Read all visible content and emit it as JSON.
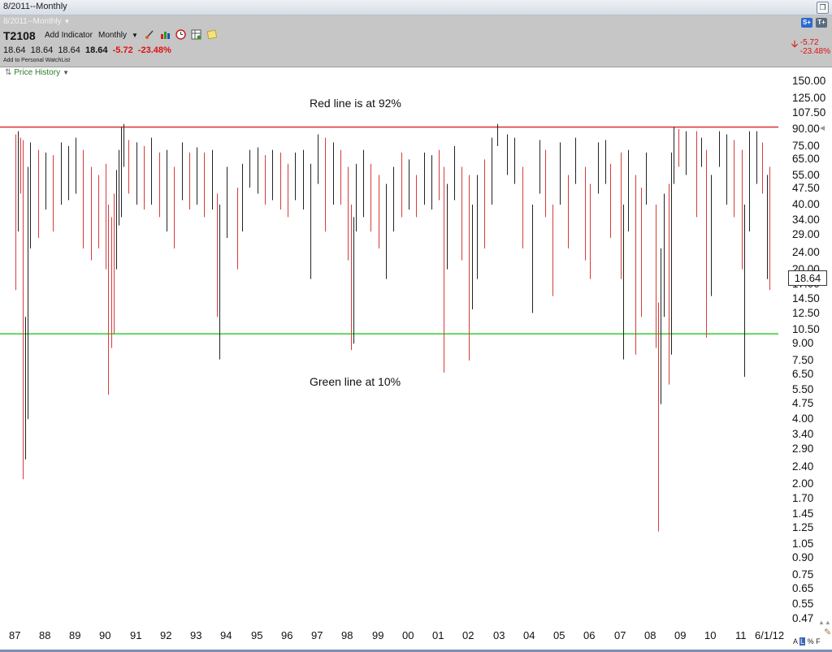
{
  "window": {
    "title": "8/2011--Monthly"
  },
  "toolbar": {
    "period_title": "8/2011--Monthly",
    "symbol": "T2108",
    "add_indicator": "Add Indicator",
    "period": "Monthly",
    "quote": {
      "open": "18.64",
      "high": "18.64",
      "low": "18.64",
      "last": "18.64",
      "change": "-5.72",
      "change_pct": "-23.48%"
    },
    "watchlist": "Add to Personal WatchList",
    "right_change": "-5.72",
    "right_change_pct": "-23.48%",
    "icons": [
      "drawing-tool-icon",
      "bar-chart-icon",
      "clock-icon",
      "table-icon",
      "note-icon"
    ]
  },
  "price_history": {
    "label": "Price History"
  },
  "annotations": {
    "top": "Red line is at 92%",
    "bottom": "Green line at 10%"
  },
  "last_value_label": "18.64",
  "bottom_toggles": {
    "a": "A",
    "l": "L",
    "pct": "%",
    "f": "F"
  },
  "colors": {
    "up": "#222222",
    "down": "#d83a3a",
    "red_line": "#d63030",
    "green_line": "#33cc33"
  },
  "chart_data": {
    "type": "bar",
    "style": "OHLC monthly price bars, red for down months, black for up months",
    "y_scale": "log",
    "y_ticks": [
      "150.00",
      "125.00",
      "107.50",
      "90.00",
      "75.00",
      "65.00",
      "55.00",
      "47.50",
      "40.00",
      "34.00",
      "29.00",
      "24.00",
      "20.00",
      "17.00",
      "14.50",
      "12.50",
      "10.50",
      "9.00",
      "7.50",
      "6.50",
      "5.50",
      "4.75",
      "4.00",
      "3.40",
      "2.90",
      "2.40",
      "2.00",
      "1.70",
      "1.45",
      "1.25",
      "1.05",
      "0.90",
      "0.75",
      "0.65",
      "0.55",
      "0.47"
    ],
    "x_ticks": [
      "87",
      "88",
      "89",
      "90",
      "91",
      "92",
      "93",
      "94",
      "95",
      "96",
      "97",
      "98",
      "99",
      "00",
      "01",
      "02",
      "03",
      "04",
      "05",
      "06",
      "07",
      "08",
      "09",
      "10",
      "11",
      "6/1/12"
    ],
    "ylim": [
      0.45,
      175
    ],
    "reference_lines": [
      {
        "value": 92,
        "color": "red"
      },
      {
        "value": 10,
        "color": "green"
      }
    ],
    "last_value": 18.64,
    "series": [
      {
        "values": [
          {
            "d": "1987-07",
            "h": 85,
            "l": 16,
            "up": false
          },
          {
            "d": "1987-08",
            "h": 88,
            "l": 30,
            "up": true
          },
          {
            "d": "1987-09",
            "h": 82,
            "l": 45,
            "up": false
          },
          {
            "d": "1987-10",
            "h": 80,
            "l": 2.1,
            "up": false
          },
          {
            "d": "1987-11",
            "h": 12,
            "l": 2.6,
            "up": true
          },
          {
            "d": "1987-12",
            "h": 60,
            "l": 4,
            "up": true
          },
          {
            "d": "1988-01",
            "h": 78,
            "l": 25,
            "up": true
          },
          {
            "d": "1988-04",
            "h": 72,
            "l": 28,
            "up": false
          },
          {
            "d": "1988-07",
            "h": 70,
            "l": 38,
            "up": true
          },
          {
            "d": "1988-10",
            "h": 68,
            "l": 30,
            "up": false
          },
          {
            "d": "1989-01",
            "h": 78,
            "l": 40,
            "up": true
          },
          {
            "d": "1989-04",
            "h": 75,
            "l": 42,
            "up": true
          },
          {
            "d": "1989-07",
            "h": 82,
            "l": 45,
            "up": true
          },
          {
            "d": "1989-10",
            "h": 72,
            "l": 25,
            "up": false
          },
          {
            "d": "1990-01",
            "h": 60,
            "l": 22,
            "up": false
          },
          {
            "d": "1990-04",
            "h": 55,
            "l": 25,
            "up": false
          },
          {
            "d": "1990-07",
            "h": 62,
            "l": 20,
            "up": false
          },
          {
            "d": "1990-08",
            "h": 40,
            "l": 5.2,
            "up": false
          },
          {
            "d": "1990-09",
            "h": 35,
            "l": 8.6,
            "up": false
          },
          {
            "d": "1990-10",
            "h": 45,
            "l": 10,
            "up": false
          },
          {
            "d": "1990-11",
            "h": 58,
            "l": 20,
            "up": true
          },
          {
            "d": "1990-12",
            "h": 72,
            "l": 32,
            "up": true
          },
          {
            "d": "1991-01",
            "h": 92,
            "l": 35,
            "up": true
          },
          {
            "d": "1991-02",
            "h": 95,
            "l": 60,
            "up": true
          },
          {
            "d": "1991-04",
            "h": 80,
            "l": 45,
            "up": false
          },
          {
            "d": "1991-07",
            "h": 78,
            "l": 40,
            "up": true
          },
          {
            "d": "1991-10",
            "h": 75,
            "l": 38,
            "up": false
          },
          {
            "d": "1992-01",
            "h": 82,
            "l": 40,
            "up": true
          },
          {
            "d": "1992-04",
            "h": 70,
            "l": 35,
            "up": false
          },
          {
            "d": "1992-07",
            "h": 72,
            "l": 30,
            "up": true
          },
          {
            "d": "1992-10",
            "h": 60,
            "l": 25,
            "up": false
          },
          {
            "d": "1993-01",
            "h": 78,
            "l": 42,
            "up": true
          },
          {
            "d": "1993-04",
            "h": 70,
            "l": 38,
            "up": false
          },
          {
            "d": "1993-07",
            "h": 74,
            "l": 40,
            "up": true
          },
          {
            "d": "1993-10",
            "h": 70,
            "l": 35,
            "up": false
          },
          {
            "d": "1994-01",
            "h": 72,
            "l": 38,
            "up": true
          },
          {
            "d": "1994-03",
            "h": 45,
            "l": 12,
            "up": false
          },
          {
            "d": "1994-04",
            "h": 40,
            "l": 7.6,
            "up": true
          },
          {
            "d": "1994-07",
            "h": 60,
            "l": 28,
            "up": true
          },
          {
            "d": "1994-11",
            "h": 48,
            "l": 20,
            "up": false
          },
          {
            "d": "1995-01",
            "h": 62,
            "l": 30,
            "up": true
          },
          {
            "d": "1995-04",
            "h": 72,
            "l": 48,
            "up": true
          },
          {
            "d": "1995-07",
            "h": 74,
            "l": 45,
            "up": true
          },
          {
            "d": "1995-10",
            "h": 68,
            "l": 40,
            "up": false
          },
          {
            "d": "1996-01",
            "h": 72,
            "l": 42,
            "up": true
          },
          {
            "d": "1996-04",
            "h": 70,
            "l": 38,
            "up": false
          },
          {
            "d": "1996-07",
            "h": 62,
            "l": 35,
            "up": false
          },
          {
            "d": "1996-10",
            "h": 70,
            "l": 42,
            "up": true
          },
          {
            "d": "1997-01",
            "h": 72,
            "l": 38,
            "up": true
          },
          {
            "d": "1997-04",
            "h": 62,
            "l": 18,
            "up": true
          },
          {
            "d": "1997-07",
            "h": 85,
            "l": 50,
            "up": true
          },
          {
            "d": "1997-10",
            "h": 82,
            "l": 30,
            "up": false
          },
          {
            "d": "1998-01",
            "h": 78,
            "l": 40,
            "up": true
          },
          {
            "d": "1998-04",
            "h": 72,
            "l": 40,
            "up": false
          },
          {
            "d": "1998-07",
            "h": 60,
            "l": 22,
            "up": false
          },
          {
            "d": "1998-08",
            "h": 40,
            "l": 8.4,
            "up": false
          },
          {
            "d": "1998-09",
            "h": 35,
            "l": 9,
            "up": true
          },
          {
            "d": "1998-10",
            "h": 62,
            "l": 30,
            "up": true
          },
          {
            "d": "1999-01",
            "h": 72,
            "l": 35,
            "up": true
          },
          {
            "d": "1999-04",
            "h": 62,
            "l": 30,
            "up": false
          },
          {
            "d": "1999-07",
            "h": 55,
            "l": 25,
            "up": false
          },
          {
            "d": "1999-10",
            "h": 50,
            "l": 18,
            "up": true
          },
          {
            "d": "2000-01",
            "h": 60,
            "l": 30,
            "up": true
          },
          {
            "d": "2000-04",
            "h": 70,
            "l": 35,
            "up": false
          },
          {
            "d": "2000-07",
            "h": 65,
            "l": 38,
            "up": true
          },
          {
            "d": "2000-10",
            "h": 55,
            "l": 35,
            "up": false
          },
          {
            "d": "2001-01",
            "h": 70,
            "l": 40,
            "up": true
          },
          {
            "d": "2001-04",
            "h": 68,
            "l": 38,
            "up": true
          },
          {
            "d": "2001-07",
            "h": 72,
            "l": 42,
            "up": false
          },
          {
            "d": "2001-09",
            "h": 60,
            "l": 6.6,
            "up": false
          },
          {
            "d": "2001-10",
            "h": 50,
            "l": 20,
            "up": true
          },
          {
            "d": "2002-01",
            "h": 75,
            "l": 42,
            "up": true
          },
          {
            "d": "2002-04",
            "h": 60,
            "l": 22,
            "up": false
          },
          {
            "d": "2002-07",
            "h": 55,
            "l": 7.5,
            "up": false
          },
          {
            "d": "2002-08",
            "h": 40,
            "l": 13,
            "up": true
          },
          {
            "d": "2002-10",
            "h": 55,
            "l": 18,
            "up": true
          },
          {
            "d": "2003-01",
            "h": 65,
            "l": 25,
            "up": false
          },
          {
            "d": "2003-04",
            "h": 82,
            "l": 40,
            "up": true
          },
          {
            "d": "2003-06",
            "h": 95,
            "l": 75,
            "up": true
          },
          {
            "d": "2003-10",
            "h": 85,
            "l": 55,
            "up": true
          },
          {
            "d": "2004-01",
            "h": 82,
            "l": 50,
            "up": true
          },
          {
            "d": "2004-04",
            "h": 60,
            "l": 25,
            "up": false
          },
          {
            "d": "2004-08",
            "h": 40,
            "l": 12.5,
            "up": true
          },
          {
            "d": "2004-11",
            "h": 80,
            "l": 45,
            "up": true
          },
          {
            "d": "2005-01",
            "h": 72,
            "l": 35,
            "up": false
          },
          {
            "d": "2005-04",
            "h": 40,
            "l": 15,
            "up": false
          },
          {
            "d": "2005-07",
            "h": 78,
            "l": 40,
            "up": true
          },
          {
            "d": "2005-10",
            "h": 55,
            "l": 25,
            "up": false
          },
          {
            "d": "2006-01",
            "h": 82,
            "l": 50,
            "up": true
          },
          {
            "d": "2006-05",
            "h": 60,
            "l": 22,
            "up": false
          },
          {
            "d": "2006-07",
            "h": 50,
            "l": 18,
            "up": false
          },
          {
            "d": "2006-10",
            "h": 78,
            "l": 45,
            "up": true
          },
          {
            "d": "2007-01",
            "h": 80,
            "l": 50,
            "up": true
          },
          {
            "d": "2007-03",
            "h": 62,
            "l": 28,
            "up": false
          },
          {
            "d": "2007-07",
            "h": 70,
            "l": 18,
            "up": false
          },
          {
            "d": "2007-08",
            "h": 40,
            "l": 7.6,
            "up": true
          },
          {
            "d": "2007-10",
            "h": 72,
            "l": 30,
            "up": true
          },
          {
            "d": "2008-01",
            "h": 55,
            "l": 8,
            "up": false
          },
          {
            "d": "2008-03",
            "h": 48,
            "l": 12,
            "up": false
          },
          {
            "d": "2008-05",
            "h": 70,
            "l": 40,
            "up": true
          },
          {
            "d": "2008-09",
            "h": 40,
            "l": 8.6,
            "up": false
          },
          {
            "d": "2008-10",
            "h": 14,
            "l": 1.2,
            "up": false
          },
          {
            "d": "2008-11",
            "h": 25,
            "l": 4.7,
            "up": true
          },
          {
            "d": "2008-12",
            "h": 45,
            "l": 12,
            "up": true
          },
          {
            "d": "2009-02",
            "h": 50,
            "l": 5.8,
            "up": false
          },
          {
            "d": "2009-03",
            "h": 70,
            "l": 8,
            "up": true
          },
          {
            "d": "2009-04",
            "h": 92,
            "l": 50,
            "up": true
          },
          {
            "d": "2009-06",
            "h": 90,
            "l": 60,
            "up": false
          },
          {
            "d": "2009-09",
            "h": 88,
            "l": 55,
            "up": true
          },
          {
            "d": "2010-01",
            "h": 88,
            "l": 35,
            "up": false
          },
          {
            "d": "2010-03",
            "h": 82,
            "l": 60,
            "up": true
          },
          {
            "d": "2010-05",
            "h": 72,
            "l": 9.6,
            "up": false
          },
          {
            "d": "2010-07",
            "h": 55,
            "l": 15,
            "up": true
          },
          {
            "d": "2010-10",
            "h": 88,
            "l": 60,
            "up": true
          },
          {
            "d": "2011-01",
            "h": 85,
            "l": 40,
            "up": true
          },
          {
            "d": "2011-04",
            "h": 80,
            "l": 35,
            "up": false
          },
          {
            "d": "2011-07",
            "h": 72,
            "l": 20,
            "up": false
          },
          {
            "d": "2011-08",
            "h": 40,
            "l": 6.3,
            "up": true
          },
          {
            "d": "2011-10",
            "h": 88,
            "l": 30,
            "up": true
          },
          {
            "d": "2012-01",
            "h": 88,
            "l": 50,
            "up": true
          },
          {
            "d": "2012-03",
            "h": 78,
            "l": 45,
            "up": false
          },
          {
            "d": "2012-05",
            "h": 55,
            "l": 18,
            "up": true
          },
          {
            "d": "2012-06",
            "h": 60,
            "l": 16,
            "up": false
          }
        ]
      }
    ]
  }
}
